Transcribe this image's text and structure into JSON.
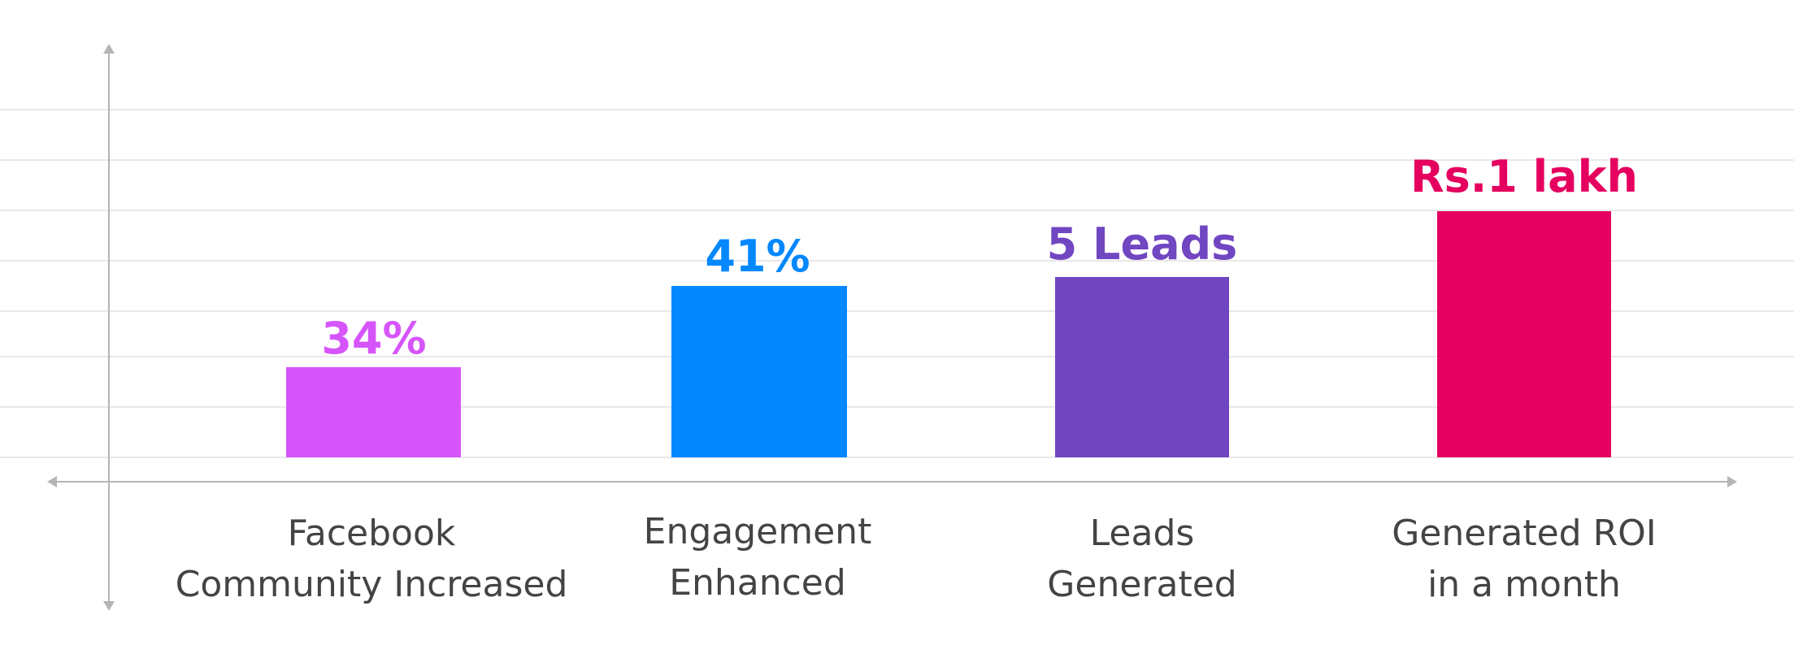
{
  "bars": [
    {
      "label": "34%",
      "category": [
        "Facebook",
        "Community Increased"
      ]
    },
    {
      "label": "41%",
      "category": [
        "Engagement",
        "Enhanced"
      ]
    },
    {
      "label": "5 Leads",
      "category": [
        "Leads",
        "Generated"
      ]
    },
    {
      "label": "Rs.1 lakh",
      "category": [
        "Generated ROI",
        "in a month"
      ]
    }
  ]
}
